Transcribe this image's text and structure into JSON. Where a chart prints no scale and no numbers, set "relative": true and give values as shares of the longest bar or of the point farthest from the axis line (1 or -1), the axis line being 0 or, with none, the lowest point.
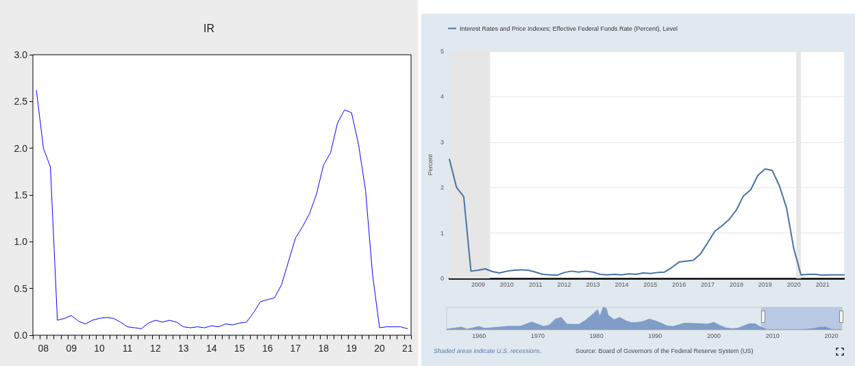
{
  "chart_data": [
    {
      "type": "line",
      "title": "IR",
      "marker": "none",
      "grid": false,
      "categories": [
        null,
        "08",
        null,
        null,
        null,
        "09",
        null,
        null,
        null,
        "10",
        null,
        null,
        null,
        "11",
        null,
        null,
        null,
        "12",
        null,
        null,
        null,
        "13",
        null,
        null,
        null,
        "14",
        null,
        null,
        null,
        "15",
        null,
        null,
        null,
        "16",
        null,
        null,
        null,
        "17",
        null,
        null,
        null,
        "18",
        null,
        null,
        null,
        "19",
        null,
        null,
        null,
        "20",
        null,
        null,
        null,
        "21"
      ],
      "series": [
        {
          "color": "#0000ff",
          "values": [
            2.62,
            2.0,
            1.8,
            0.16,
            0.18,
            0.21,
            0.15,
            0.12,
            0.16,
            0.18,
            0.19,
            0.18,
            0.14,
            0.09,
            0.08,
            0.07,
            0.13,
            0.16,
            0.14,
            0.16,
            0.14,
            0.09,
            0.08,
            0.09,
            0.08,
            0.1,
            0.09,
            0.12,
            0.11,
            0.13,
            0.14,
            0.24,
            0.36,
            0.38,
            0.4,
            0.54,
            0.79,
            1.04,
            1.16,
            1.3,
            1.51,
            1.82,
            1.95,
            2.27,
            2.41,
            2.38,
            2.04,
            1.55,
            0.65,
            0.08,
            0.09,
            0.09,
            0.09,
            0.07
          ]
        }
      ],
      "ylim": [
        0,
        3
      ],
      "yticks": [
        {
          "value": 0,
          "label": "0.0"
        },
        {
          "value": 0.5,
          "label": "0.5"
        },
        {
          "value": 1,
          "label": "1.0"
        },
        {
          "value": 1.5,
          "label": "1.5"
        },
        {
          "value": 2,
          "label": "2.0"
        },
        {
          "value": 2.5,
          "label": "2.5"
        },
        {
          "value": 3,
          "label": "3.0"
        }
      ]
    },
    {
      "type": "line",
      "marker": "none",
      "grid": "y",
      "legend": "top left",
      "ylabel": "Percent",
      "x": [
        "2008-01",
        "2008-04",
        "2008-07",
        "2008-10",
        "2009-01",
        "2009-04",
        "2009-07",
        "2009-10",
        "2010-01",
        "2010-04",
        "2010-07",
        "2010-10",
        "2011-01",
        "2011-04",
        "2011-07",
        "2011-10",
        "2012-01",
        "2012-04",
        "2012-07",
        "2012-10",
        "2013-01",
        "2013-04",
        "2013-07",
        "2013-10",
        "2014-01",
        "2014-04",
        "2014-07",
        "2014-10",
        "2015-01",
        "2015-04",
        "2015-07",
        "2015-10",
        "2016-01",
        "2016-04",
        "2016-07",
        "2016-10",
        "2017-01",
        "2017-04",
        "2017-07",
        "2017-10",
        "2018-01",
        "2018-04",
        "2018-07",
        "2018-10",
        "2019-01",
        "2019-04",
        "2019-07",
        "2019-10",
        "2020-01",
        "2020-04",
        "2020-07",
        "2020-10",
        "2021-01",
        "2021-04",
        "2021-07",
        "2021-10"
      ],
      "series": [
        {
          "name": "Interest Rates and Price Indexes; Effective Federal Funds Rate (Percent), Level",
          "color": "#4572a7",
          "values": [
            2.62,
            2.0,
            1.8,
            0.16,
            0.18,
            0.21,
            0.15,
            0.12,
            0.16,
            0.18,
            0.19,
            0.18,
            0.14,
            0.09,
            0.08,
            0.07,
            0.13,
            0.16,
            0.14,
            0.16,
            0.14,
            0.09,
            0.08,
            0.09,
            0.08,
            0.1,
            0.09,
            0.12,
            0.11,
            0.13,
            0.14,
            0.24,
            0.36,
            0.38,
            0.4,
            0.54,
            0.79,
            1.04,
            1.16,
            1.3,
            1.51,
            1.82,
            1.95,
            2.27,
            2.41,
            2.38,
            2.04,
            1.55,
            0.65,
            0.08,
            0.09,
            0.09,
            0.07,
            0.08,
            0.08,
            0.08
          ]
        }
      ],
      "xlim": [
        "2008-01",
        "2021-10"
      ],
      "xticks": [
        "2009",
        "2010",
        "2011",
        "2012",
        "2013",
        "2014",
        "2015",
        "2016",
        "2017",
        "2018",
        "2019",
        "2020",
        "2021"
      ],
      "ylim": [
        0,
        5
      ],
      "yticks": [
        0,
        1,
        2,
        3,
        4,
        5
      ],
      "bands": [
        {
          "axis": "x",
          "from": "2008-01",
          "to": "2009-06",
          "color": "#e6e6e6"
        },
        {
          "axis": "x",
          "from": "2020-02",
          "to": "2020-04",
          "color": "#e6e6e6"
        }
      ],
      "annotations": [
        "Shaded areas indicate U.S. recessions.",
        "Source: Board of Governors of the Federal Reserve System (US)"
      ]
    },
    {
      "type": "area",
      "relative": true,
      "marker": "none",
      "grid": false,
      "tick_labels": "x",
      "x": [
        1954.5,
        1955,
        1957,
        1958,
        1960,
        1961,
        1965,
        1967,
        1969,
        1971,
        1972,
        1973,
        1974,
        1975,
        1977,
        1978,
        1979.4,
        1980.2,
        1980.6,
        1981.1,
        1981.7,
        1982,
        1983,
        1984,
        1985,
        1986,
        1987,
        1988,
        1989,
        1990,
        1991,
        1992,
        1993,
        1994,
        1995,
        1997,
        1999,
        2000,
        2001,
        2002,
        2003,
        2004,
        2005,
        2006,
        2007,
        2008,
        2009,
        2015,
        2016,
        2017,
        2018,
        2019,
        2020,
        2021.8
      ],
      "series": [
        {
          "color": "#6e8fc0",
          "values": [
            0.03,
            0.05,
            0.12,
            0.03,
            0.15,
            0.07,
            0.16,
            0.16,
            0.35,
            0.15,
            0.22,
            0.48,
            0.55,
            0.25,
            0.24,
            0.4,
            0.7,
            0.9,
            0.6,
            1.0,
            0.95,
            0.65,
            0.45,
            0.55,
            0.4,
            0.32,
            0.33,
            0.38,
            0.48,
            0.4,
            0.3,
            0.18,
            0.15,
            0.22,
            0.3,
            0.28,
            0.26,
            0.33,
            0.2,
            0.09,
            0.05,
            0.07,
            0.17,
            0.27,
            0.27,
            0.12,
            0.01,
            0.01,
            0.03,
            0.06,
            0.11,
            0.13,
            0.02,
            0.01
          ]
        }
      ],
      "xlim": [
        1954.5,
        2021.8
      ],
      "xticks": [
        1960,
        1970,
        1980,
        1990,
        2000,
        2010,
        2020
      ],
      "bands": [
        {
          "axis": "x",
          "from": 2008,
          "to": 2021.8,
          "color": "#b9c9e3"
        }
      ]
    }
  ]
}
